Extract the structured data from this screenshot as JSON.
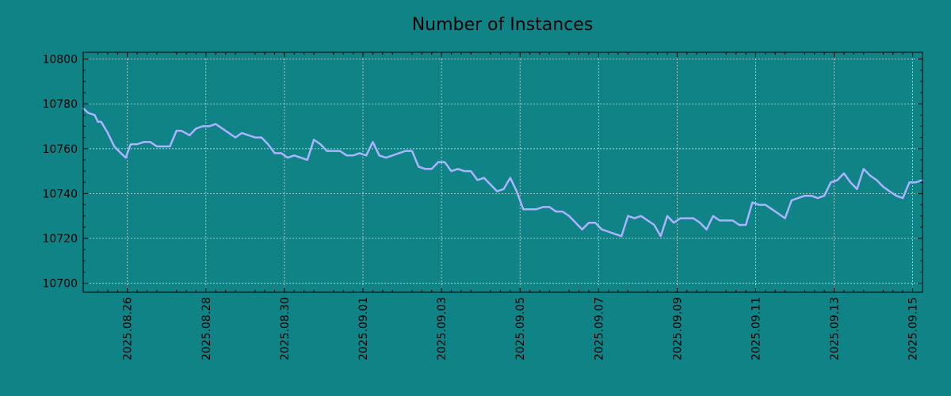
{
  "chart_data": {
    "type": "line",
    "title": "Number of Instances",
    "xlabel": "",
    "ylabel": "",
    "x_axis": {
      "kind": "date",
      "range": [
        "2025-08-24T21:00",
        "2025-09-15T06:00"
      ],
      "tick_labels": [
        "2025.08.26",
        "2025.08.28",
        "2025.08.30",
        "2025.09.01",
        "2025.09.03",
        "2025.09.05",
        "2025.09.07",
        "2025.09.09",
        "2025.09.11",
        "2025.09.13",
        "2025.09.15"
      ],
      "tick_dates": [
        "2025-08-26",
        "2025-08-28",
        "2025-08-30",
        "2025-09-01",
        "2025-09-03",
        "2025-09-05",
        "2025-09-07",
        "2025-09-09",
        "2025-09-11",
        "2025-09-13",
        "2025-09-15"
      ]
    },
    "ylim": [
      10696,
      10803
    ],
    "y_ticks": [
      10700,
      10720,
      10740,
      10760,
      10780,
      10800
    ],
    "grid": true,
    "legend": "none",
    "colors": {
      "background": "#108386",
      "line": "#a9b4ff",
      "grid": "#c8d8d8",
      "axis": "#000000"
    },
    "series": [
      {
        "x": [
          "2025-08-24T21:00",
          "2025-08-25T00:00",
          "2025-08-25T04:00",
          "2025-08-25T06:00",
          "2025-08-25T08:00",
          "2025-08-25T12:00",
          "2025-08-25T16:00",
          "2025-08-25T20:00",
          "2025-08-25T23:00",
          "2025-08-26T02:00",
          "2025-08-26T06:00",
          "2025-08-26T10:00",
          "2025-08-26T14:00",
          "2025-08-26T18:00",
          "2025-08-26T22:00",
          "2025-08-27T02:00",
          "2025-08-27T06:00",
          "2025-08-27T09:00",
          "2025-08-27T14:00",
          "2025-08-27T18:00",
          "2025-08-27T22:00",
          "2025-08-28T02:00",
          "2025-08-28T06:00",
          "2025-08-28T10:00",
          "2025-08-28T14:00",
          "2025-08-28T18:00",
          "2025-08-28T22:00",
          "2025-08-29T02:00",
          "2025-08-29T06:00",
          "2025-08-29T10:00",
          "2025-08-29T14:00",
          "2025-08-29T18:00",
          "2025-08-29T22:00",
          "2025-08-30T02:00",
          "2025-08-30T06:00",
          "2025-08-30T10:00",
          "2025-08-30T14:00",
          "2025-08-30T18:00",
          "2025-08-30T22:00",
          "2025-08-31T02:00",
          "2025-08-31T06:00",
          "2025-08-31T10:00",
          "2025-08-31T14:00",
          "2025-08-31T18:00",
          "2025-08-31T22:00",
          "2025-09-01T02:00",
          "2025-09-01T06:00",
          "2025-09-01T10:00",
          "2025-09-01T14:00",
          "2025-09-01T18:00",
          "2025-09-01T22:00",
          "2025-09-02T02:00",
          "2025-09-02T06:00",
          "2025-09-02T10:00",
          "2025-09-02T14:00",
          "2025-09-02T18:00",
          "2025-09-02T22:00",
          "2025-09-03T02:00",
          "2025-09-03T06:00",
          "2025-09-03T10:00",
          "2025-09-03T14:00",
          "2025-09-03T18:00",
          "2025-09-03T22:00",
          "2025-09-04T02:00",
          "2025-09-04T06:00",
          "2025-09-04T10:00",
          "2025-09-04T14:00",
          "2025-09-04T18:00",
          "2025-09-04T22:00",
          "2025-09-05T02:00",
          "2025-09-05T06:00",
          "2025-09-05T10:00",
          "2025-09-05T14:00",
          "2025-09-05T18:00",
          "2025-09-05T22:00",
          "2025-09-06T02:00",
          "2025-09-06T06:00",
          "2025-09-06T10:00",
          "2025-09-06T14:00",
          "2025-09-06T18:00",
          "2025-09-06T22:00",
          "2025-09-07T02:00",
          "2025-09-07T06:00",
          "2025-09-07T10:00",
          "2025-09-07T14:00",
          "2025-09-07T18:00",
          "2025-09-07T22:00",
          "2025-09-08T02:00",
          "2025-09-08T06:00",
          "2025-09-08T10:00",
          "2025-09-08T14:00",
          "2025-09-08T18:00",
          "2025-09-08T22:00",
          "2025-09-09T02:00",
          "2025-09-09T06:00",
          "2025-09-09T10:00",
          "2025-09-09T14:00",
          "2025-09-09T18:00",
          "2025-09-09T22:00",
          "2025-09-10T02:00",
          "2025-09-10T06:00",
          "2025-09-10T10:00",
          "2025-09-10T14:00",
          "2025-09-10T18:00",
          "2025-09-10T22:00",
          "2025-09-11T02:00",
          "2025-09-11T06:00",
          "2025-09-11T10:00",
          "2025-09-11T14:00",
          "2025-09-11T18:00",
          "2025-09-11T22:00",
          "2025-09-12T02:00",
          "2025-09-12T06:00",
          "2025-09-12T10:00",
          "2025-09-12T14:00",
          "2025-09-12T18:00",
          "2025-09-12T22:00",
          "2025-09-13T02:00",
          "2025-09-13T06:00",
          "2025-09-13T10:00",
          "2025-09-13T14:00",
          "2025-09-13T18:00",
          "2025-09-13T22:00",
          "2025-09-14T02:00",
          "2025-09-14T06:00",
          "2025-09-14T10:00",
          "2025-09-14T14:00",
          "2025-09-14T18:00",
          "2025-09-14T22:00",
          "2025-09-15T02:00",
          "2025-09-15T06:00"
        ],
        "y": [
          10778,
          10776,
          10775,
          10772,
          10772,
          10767,
          10761,
          10758,
          10756,
          10762,
          10762,
          10763,
          10763,
          10761,
          10761,
          10761,
          10768,
          10768,
          10766,
          10769,
          10770,
          10770,
          10771,
          10769,
          10767,
          10765,
          10767,
          10766,
          10765,
          10765,
          10762,
          10758,
          10758,
          10756,
          10757,
          10756,
          10755,
          10764,
          10762,
          10759,
          10759,
          10759,
          10757,
          10757,
          10758,
          10757,
          10763,
          10757,
          10756,
          10757,
          10758,
          10759,
          10759,
          10752,
          10751,
          10751,
          10754,
          10754,
          10750,
          10751,
          10750,
          10750,
          10746,
          10747,
          10744,
          10741,
          10742,
          10747,
          10741,
          10733,
          10733,
          10733,
          10734,
          10734,
          10732,
          10732,
          10730,
          10727,
          10724,
          10727,
          10727,
          10724,
          10723,
          10722,
          10721,
          10730,
          10729,
          10730,
          10728,
          10726,
          10721,
          10730,
          10727,
          10729,
          10729,
          10729,
          10727,
          10724,
          10730,
          10728,
          10728,
          10728,
          10726,
          10726,
          10736,
          10735,
          10735,
          10733,
          10731,
          10729,
          10737,
          10738,
          10739,
          10739,
          10738,
          10739,
          10745,
          10746,
          10749,
          10745,
          10742,
          10751,
          10748,
          10746,
          10743,
          10741,
          10739,
          10738,
          10745,
          10745,
          10746
        ]
      }
    ]
  }
}
